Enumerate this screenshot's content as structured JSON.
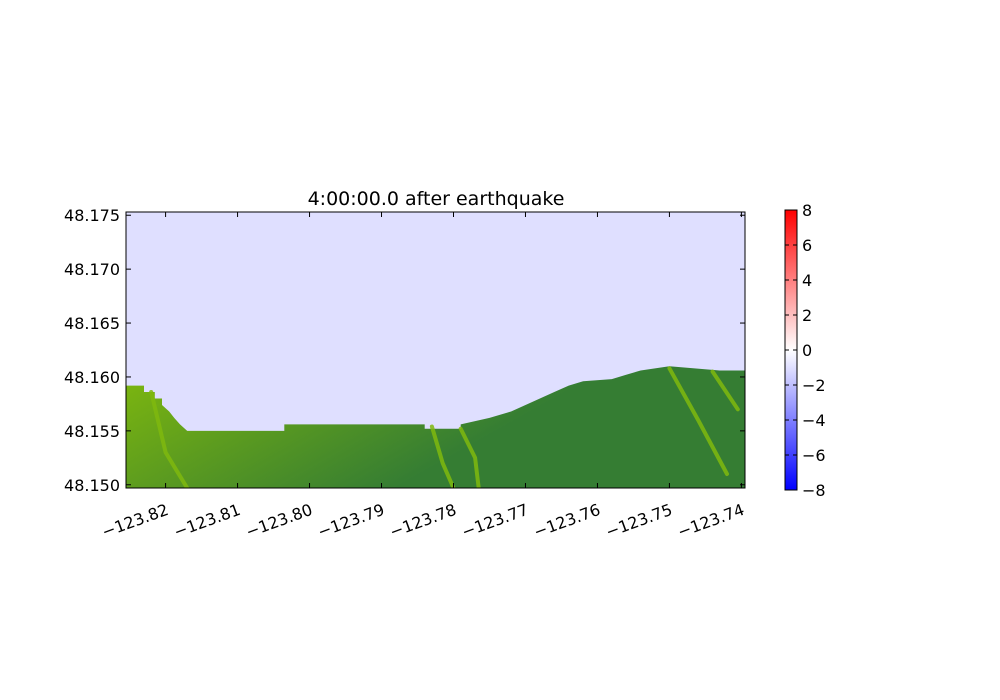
{
  "chart_data": {
    "type": "heatmap",
    "title": "4:00:00.0 after earthquake",
    "xlabel": "",
    "ylabel": "",
    "xlim": [
      -123.8255,
      -123.7395
    ],
    "ylim": [
      48.1497,
      48.1753
    ],
    "x_ticks": [
      -123.82,
      -123.81,
      -123.8,
      -123.79,
      -123.78,
      -123.77,
      -123.76,
      -123.75,
      -123.74
    ],
    "x_tick_labels": [
      "−123.82",
      "−123.81",
      "−123.80",
      "−123.79",
      "−123.78",
      "−123.77",
      "−123.76",
      "−123.75",
      "−123.74"
    ],
    "y_ticks": [
      48.15,
      48.155,
      48.16,
      48.165,
      48.17,
      48.175
    ],
    "y_tick_labels": [
      "48.150",
      "48.155",
      "48.160",
      "48.165",
      "48.170",
      "48.175"
    ],
    "water_surface_value": -1.0,
    "colorbar": {
      "range": [
        -8,
        8
      ],
      "ticks": [
        8,
        6,
        4,
        2,
        0,
        -2,
        -4,
        -6,
        -8
      ],
      "tick_labels": [
        "8",
        "6",
        "4",
        "2",
        "0",
        "−2",
        "−4",
        "−6",
        "−8"
      ],
      "colors": {
        "low": "#0000ff",
        "mid": "#ffffff",
        "high": "#ff0000"
      }
    },
    "land_colors": {
      "light": "#7fb80e",
      "mid": "#5a9a20",
      "dark": "#357d33"
    },
    "shoreline": [
      {
        "lon": -123.8255,
        "lat": 48.1592
      },
      {
        "lon": -123.823,
        "lat": 48.1592
      },
      {
        "lon": -123.823,
        "lat": 48.1586
      },
      {
        "lon": -123.8215,
        "lat": 48.1586
      },
      {
        "lon": -123.8215,
        "lat": 48.158
      },
      {
        "lon": -123.8205,
        "lat": 48.158
      },
      {
        "lon": -123.8205,
        "lat": 48.1574
      },
      {
        "lon": -123.8195,
        "lat": 48.1568
      },
      {
        "lon": -123.8188,
        "lat": 48.1562
      },
      {
        "lon": -123.818,
        "lat": 48.1556
      },
      {
        "lon": -123.817,
        "lat": 48.155
      },
      {
        "lon": -123.8035,
        "lat": 48.155
      },
      {
        "lon": -123.8035,
        "lat": 48.1556
      },
      {
        "lon": -123.784,
        "lat": 48.1556
      },
      {
        "lon": -123.784,
        "lat": 48.1552
      },
      {
        "lon": -123.779,
        "lat": 48.1552
      },
      {
        "lon": -123.779,
        "lat": 48.1556
      },
      {
        "lon": -123.775,
        "lat": 48.1562
      },
      {
        "lon": -123.772,
        "lat": 48.1568
      },
      {
        "lon": -123.77,
        "lat": 48.1574
      },
      {
        "lon": -123.768,
        "lat": 48.158
      },
      {
        "lon": -123.766,
        "lat": 48.1586
      },
      {
        "lon": -123.764,
        "lat": 48.1592
      },
      {
        "lon": -123.762,
        "lat": 48.1596
      },
      {
        "lon": -123.758,
        "lat": 48.1598
      },
      {
        "lon": -123.756,
        "lat": 48.1602
      },
      {
        "lon": -123.754,
        "lat": 48.1606
      },
      {
        "lon": -123.75,
        "lat": 48.161
      },
      {
        "lon": -123.743,
        "lat": 48.1606
      },
      {
        "lon": -123.7395,
        "lat": 48.1606
      }
    ],
    "channels": [
      [
        {
          "lon": -123.822,
          "lat": 48.1586
        },
        {
          "lon": -123.82,
          "lat": 48.153
        },
        {
          "lon": -123.817,
          "lat": 48.1497
        }
      ],
      [
        {
          "lon": -123.783,
          "lat": 48.1554
        },
        {
          "lon": -123.7815,
          "lat": 48.152
        },
        {
          "lon": -123.78,
          "lat": 48.1497
        }
      ],
      [
        {
          "lon": -123.779,
          "lat": 48.1552
        },
        {
          "lon": -123.777,
          "lat": 48.1525
        },
        {
          "lon": -123.7765,
          "lat": 48.1497
        }
      ],
      [
        {
          "lon": -123.75,
          "lat": 48.1608
        },
        {
          "lon": -123.746,
          "lat": 48.156
        },
        {
          "lon": -123.742,
          "lat": 48.151
        }
      ],
      [
        {
          "lon": -123.744,
          "lat": 48.1605
        },
        {
          "lon": -123.7405,
          "lat": 48.157
        }
      ]
    ]
  }
}
